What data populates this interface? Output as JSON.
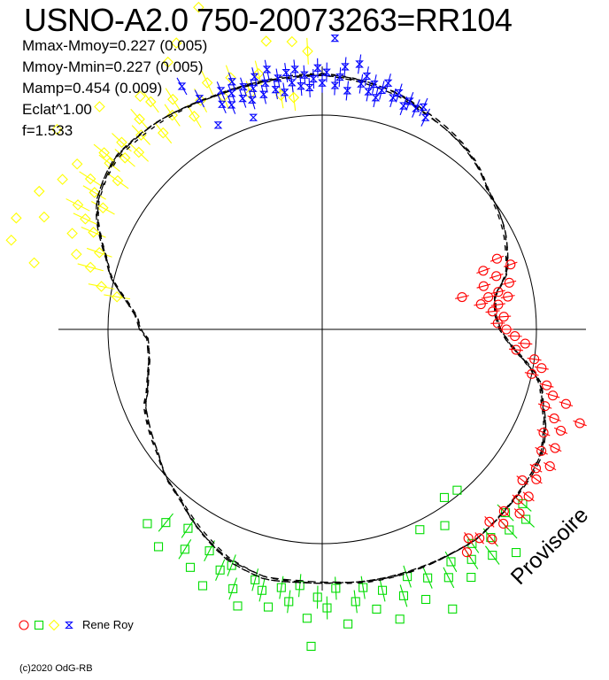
{
  "title": "USNO-A2.0 750-20073263=RR104",
  "params": [
    "Mmax-Mmoy=0.227 (0.005)",
    "Mmoy-Mmin=0.227 (0.005)",
    "Mamp=0.454 (0.009)",
    "Eclat^1.00",
    "f=1.533"
  ],
  "watermark": "Provisoire",
  "copyright": "(c)2020 OdG-RB",
  "legend": {
    "observer": "Rene Roy"
  },
  "colors": {
    "text": "#000000",
    "axes": "#000000",
    "curve": "#000000",
    "red": "#ff0000",
    "green": "#00dd00",
    "yellow": "#ffff00",
    "blue": "#0000ff"
  },
  "chart_data": {
    "type": "scatter",
    "subtype": "polar-lightcurve",
    "title": "USNO-A2.0 750-20073263=RR104",
    "stats": {
      "Mmax-Mmoy": "0.227 (0.005)",
      "Mmoy-Mmin": "0.227 (0.005)",
      "Mamp": "0.454 (0.009)",
      "Eclat_exponent": "1.00",
      "frequency": "1.533"
    },
    "reference_circle_r": 1.0,
    "axis_extent_r": 1.233,
    "legend_position": "bottom-left",
    "curve_polar": [
      [
        -180,
        0.85
      ],
      [
        -176.8,
        0.815
      ],
      [
        -170,
        0.82
      ],
      [
        -163.5,
        0.85
      ],
      [
        -160,
        0.87
      ],
      [
        -157,
        0.9
      ],
      [
        -150,
        0.93
      ],
      [
        -143,
        0.96
      ],
      [
        -137,
        1.0
      ],
      [
        -130,
        1.03
      ],
      [
        -122,
        1.09
      ],
      [
        -112,
        1.16
      ],
      [
        -103,
        1.19
      ],
      [
        -95,
        1.18
      ],
      [
        -87,
        1.18
      ],
      [
        -80,
        1.19
      ],
      [
        -70,
        1.2
      ],
      [
        -60,
        1.21
      ],
      [
        -54,
        1.22
      ],
      [
        -47,
        1.21
      ],
      [
        -41,
        1.2
      ],
      [
        -34,
        1.19
      ],
      [
        -30,
        1.18
      ],
      [
        -27,
        1.16
      ],
      [
        -23,
        1.13
      ],
      [
        -18,
        1.08
      ],
      [
        -14,
        1.05
      ],
      [
        -10,
        0.98
      ],
      [
        -7,
        0.92
      ],
      [
        -4,
        0.87
      ],
      [
        0,
        0.83
      ],
      [
        5,
        0.81
      ],
      [
        11,
        0.82
      ],
      [
        17,
        0.9
      ],
      [
        22,
        0.93
      ],
      [
        28,
        0.965
      ],
      [
        34,
        0.99
      ],
      [
        40,
        1.01
      ],
      [
        46,
        1.05
      ],
      [
        52,
        1.08
      ],
      [
        58,
        1.1
      ],
      [
        65,
        1.12
      ],
      [
        72,
        1.15
      ],
      [
        80,
        1.17
      ],
      [
        90,
        1.19
      ],
      [
        100,
        1.19
      ],
      [
        108,
        1.195
      ],
      [
        115,
        1.2
      ],
      [
        122,
        1.215
      ],
      [
        128,
        1.23
      ],
      [
        134,
        1.24
      ],
      [
        140,
        1.25
      ],
      [
        145,
        1.235
      ],
      [
        150,
        1.21
      ],
      [
        154,
        1.17
      ],
      [
        158,
        1.115
      ],
      [
        162,
        1.06
      ],
      [
        166,
        1.02
      ],
      [
        172,
        0.92
      ],
      [
        176,
        0.87
      ]
    ],
    "series": [
      {
        "name": "red-circles",
        "marker": "circle",
        "color": "#ff0000",
        "bar_half": 8,
        "points": [
          [
            22,
            0.88
          ],
          [
            20,
            0.8
          ],
          [
            19,
            0.93
          ],
          [
            17,
            0.85
          ],
          [
            15,
            0.78
          ],
          [
            14,
            0.9
          ],
          [
            13,
            0.67
          ],
          [
            12,
            0.84
          ],
          [
            11,
            0.79
          ],
          [
            10,
            0.88
          ],
          [
            9,
            0.75
          ],
          [
            8,
            0.83
          ],
          [
            6,
            0.8
          ],
          [
            4,
            0.85
          ],
          [
            2,
            0.82
          ],
          [
            0,
            0.86
          ],
          [
            -2,
            0.9
          ],
          [
            -4,
            0.95
          ],
          [
            -6,
            0.91
          ],
          [
            -8,
            1.0
          ],
          [
            -10,
            1.04
          ],
          [
            -12,
            1.0
          ],
          [
            -14,
            1.08
          ],
          [
            -16,
            1.12
          ],
          [
            -17,
            1.19
          ],
          [
            -19,
            1.1
          ],
          [
            -20,
            1.28
          ],
          [
            -21,
            1.16
          ],
          [
            -23,
            1.21
          ],
          [
            -25,
            1.14
          ],
          [
            -27,
            1.22
          ],
          [
            -29,
            1.17
          ],
          [
            -31,
            1.24
          ],
          [
            -33,
            1.19
          ],
          [
            -35,
            1.22
          ],
          [
            -37,
            1.17
          ],
          [
            -39,
            1.24
          ],
          [
            -41,
            1.21
          ],
          [
            -43,
            1.26
          ],
          [
            -45,
            1.2
          ],
          [
            -47,
            1.24
          ],
          [
            -49,
            1.19
          ],
          [
            -51,
            1.26
          ],
          [
            -53,
            1.22
          ],
          [
            -55,
            1.19
          ],
          [
            -57,
            1.24
          ]
        ]
      },
      {
        "name": "green-squares",
        "marker": "square",
        "color": "#00dd00",
        "bar_half": 13,
        "points": [
          [
            -132,
            1.22
          ],
          [
            -129,
            1.16
          ],
          [
            -127,
            1.27
          ],
          [
            -124,
            1.12
          ],
          [
            -122,
            1.21
          ],
          [
            -119,
            1.27
          ],
          [
            -117,
            1.16
          ],
          [
            -115,
            1.32
          ],
          [
            -113,
            1.22
          ],
          [
            -111,
            1.18
          ],
          [
            -109,
            1.28
          ],
          [
            -107,
            1.35
          ],
          [
            -105,
            1.21
          ],
          [
            -103,
            1.25
          ],
          [
            -101,
            1.32
          ],
          [
            -99,
            1.22
          ],
          [
            -97,
            1.28
          ],
          [
            -95,
            1.2
          ],
          [
            -93,
            1.35
          ],
          [
            -92,
            1.48
          ],
          [
            -91,
            1.25
          ],
          [
            -89,
            1.3
          ],
          [
            -87,
            1.21
          ],
          [
            -85,
            1.38
          ],
          [
            -83,
            1.28
          ],
          [
            -81,
            1.22
          ],
          [
            -79,
            1.33
          ],
          [
            -77,
            1.25
          ],
          [
            -75,
            1.4
          ],
          [
            -73,
            1.3
          ],
          [
            -71,
            1.22
          ],
          [
            -69,
            1.35
          ],
          [
            -67,
            1.26
          ],
          [
            -65,
            1.44
          ],
          [
            -64,
            1.04
          ],
          [
            -63,
            1.3
          ],
          [
            -61,
            1.24
          ],
          [
            -59,
            1.35
          ],
          [
            -58,
            1.08
          ],
          [
            -57,
            1.28
          ],
          [
            -55,
            1.22
          ],
          [
            -54,
            0.97
          ],
          [
            -53,
            1.32
          ],
          [
            -51,
            1.25
          ],
          [
            -50,
            0.98
          ],
          [
            -49,
            1.38
          ],
          [
            -47,
            1.28
          ],
          [
            -45,
            1.21
          ],
          [
            -43,
            1.3
          ],
          [
            -41,
            1.24
          ]
        ]
      },
      {
        "name": "yellow-diamonds",
        "marker": "diamond",
        "color": "#ffff00",
        "bar_half": 15,
        "points": [
          [
            104,
            1.23
          ],
          [
            107,
            1.15
          ],
          [
            110,
            1.25
          ],
          [
            111,
            1.61
          ],
          [
            113,
            1.18
          ],
          [
            115,
            1.27
          ],
          [
            117,
            1.5
          ],
          [
            118,
            1.21
          ],
          [
            120,
            1.44
          ],
          [
            121,
            1.16
          ],
          [
            123,
            1.28
          ],
          [
            125,
            1.22
          ],
          [
            127,
            1.33
          ],
          [
            128,
            1.38
          ],
          [
            129,
            1.18
          ],
          [
            131,
            1.3
          ],
          [
            133,
            1.24
          ],
          [
            135,
            1.47
          ],
          [
            136,
            1.19
          ],
          [
            137,
            1.28
          ],
          [
            139,
            1.22
          ],
          [
            141,
            1.31
          ],
          [
            142,
            1.26
          ],
          [
            143,
            1.55
          ],
          [
            144,
            1.18
          ],
          [
            146,
            1.38
          ],
          [
            147,
            1.29
          ],
          [
            149,
            1.24
          ],
          [
            150,
            1.4
          ],
          [
            151,
            1.17
          ],
          [
            153,
            1.28
          ],
          [
            154,
            1.47
          ],
          [
            155,
            1.22
          ],
          [
            157,
            1.16
          ],
          [
            158,
            1.4
          ],
          [
            159,
            1.25
          ],
          [
            160,
            1.52
          ],
          [
            161,
            1.1
          ],
          [
            163,
            1.2
          ],
          [
            164,
            1.51
          ],
          [
            165,
            1.12
          ],
          [
            167,
            1.38
          ],
          [
            169,
            1.05
          ],
          [
            171,
            0.97
          ],
          [
            101,
            1.37
          ],
          [
            96,
            1.35
          ],
          [
            93,
            1.3
          ],
          [
            100,
            1.11
          ],
          [
            97,
            1.09
          ]
        ]
      },
      {
        "name": "blue-crosses",
        "marker": "bowtie-x",
        "color": "#0000ff",
        "bar_half": 11,
        "points": [
          [
            114,
            1.15
          ],
          [
            113,
            1.21
          ],
          [
            112,
            1.13
          ],
          [
            111,
            1.18
          ],
          [
            110,
            1.23
          ],
          [
            109,
            1.14
          ],
          [
            108,
            1.19
          ],
          [
            107,
            1.12
          ],
          [
            106,
            1.17
          ],
          [
            105,
            1.22
          ],
          [
            104,
            1.13
          ],
          [
            103,
            1.18
          ],
          [
            102,
            1.24
          ],
          [
            101,
            1.14
          ],
          [
            100,
            1.19
          ],
          [
            99,
            1.12
          ],
          [
            98,
            1.21
          ],
          [
            97,
            1.16
          ],
          [
            96,
            1.22
          ],
          [
            95,
            1.14
          ],
          [
            94,
            1.19
          ],
          [
            93,
            1.13
          ],
          [
            92,
            1.17
          ],
          [
            91,
            1.22
          ],
          [
            90,
            1.15
          ],
          [
            89,
            1.2
          ],
          [
            87.5,
            1.36
          ],
          [
            87,
            1.14
          ],
          [
            86,
            1.18
          ],
          [
            85,
            1.23
          ],
          [
            84,
            1.12
          ],
          [
            82,
            1.25
          ],
          [
            81,
            1.16
          ],
          [
            80,
            1.2
          ],
          [
            79,
            1.13
          ],
          [
            78,
            1.17
          ],
          [
            77,
            1.11
          ],
          [
            76,
            1.15
          ],
          [
            75,
            1.19
          ],
          [
            73,
            1.13
          ],
          [
            72,
            1.16
          ],
          [
            70,
            1.11
          ],
          [
            69,
            1.14
          ],
          [
            67,
            1.12
          ],
          [
            65.5,
            1.14
          ],
          [
            64,
            1.1
          ],
          [
            120,
            1.31
          ],
          [
            118,
            1.22
          ],
          [
            117,
            1.07
          ],
          [
            108,
            1.04
          ]
        ]
      }
    ]
  }
}
